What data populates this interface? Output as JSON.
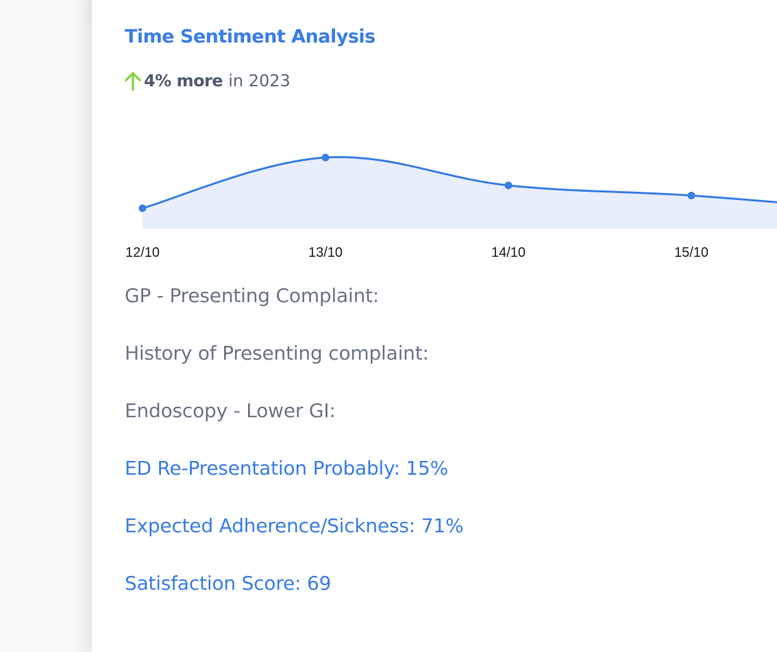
{
  "card": {
    "title": "Time Sentiment Analysis",
    "trend": {
      "direction_icon": "arrow-up-icon",
      "value": "4% more",
      "suffix": "in 2023",
      "icon_color": "#8bd04a"
    }
  },
  "chart_data": {
    "type": "area",
    "categories": [
      "12/10",
      "13/10",
      "14/10",
      "15/10"
    ],
    "series": [
      {
        "values": [
          1.0,
          3.0,
          1.9,
          1.5
        ],
        "color": "#3a7ee6",
        "fill": "#e8eefc"
      }
    ],
    "title": "",
    "xlabel": "",
    "ylabel": "",
    "grid": false,
    "legend": "none",
    "note": "line continues past the right edge, descending"
  },
  "info_lines": [
    {
      "text": "GP - Presenting Complaint:",
      "style": "neutral"
    },
    {
      "text": "History of Presenting complaint:",
      "style": "neutral"
    },
    {
      "text": "Endoscopy - Lower GI:",
      "style": "neutral"
    },
    {
      "text": "ED Re-Presentation Probably: 15%",
      "style": "accent"
    },
    {
      "text": "Expected Adherence/Sickness: 71%",
      "style": "accent"
    },
    {
      "text": "Satisfaction Score: 69",
      "style": "accent"
    }
  ],
  "colors": {
    "accent": "#3a7ee6",
    "muted_text": "#6b7487",
    "positive": "#8bd04a"
  }
}
